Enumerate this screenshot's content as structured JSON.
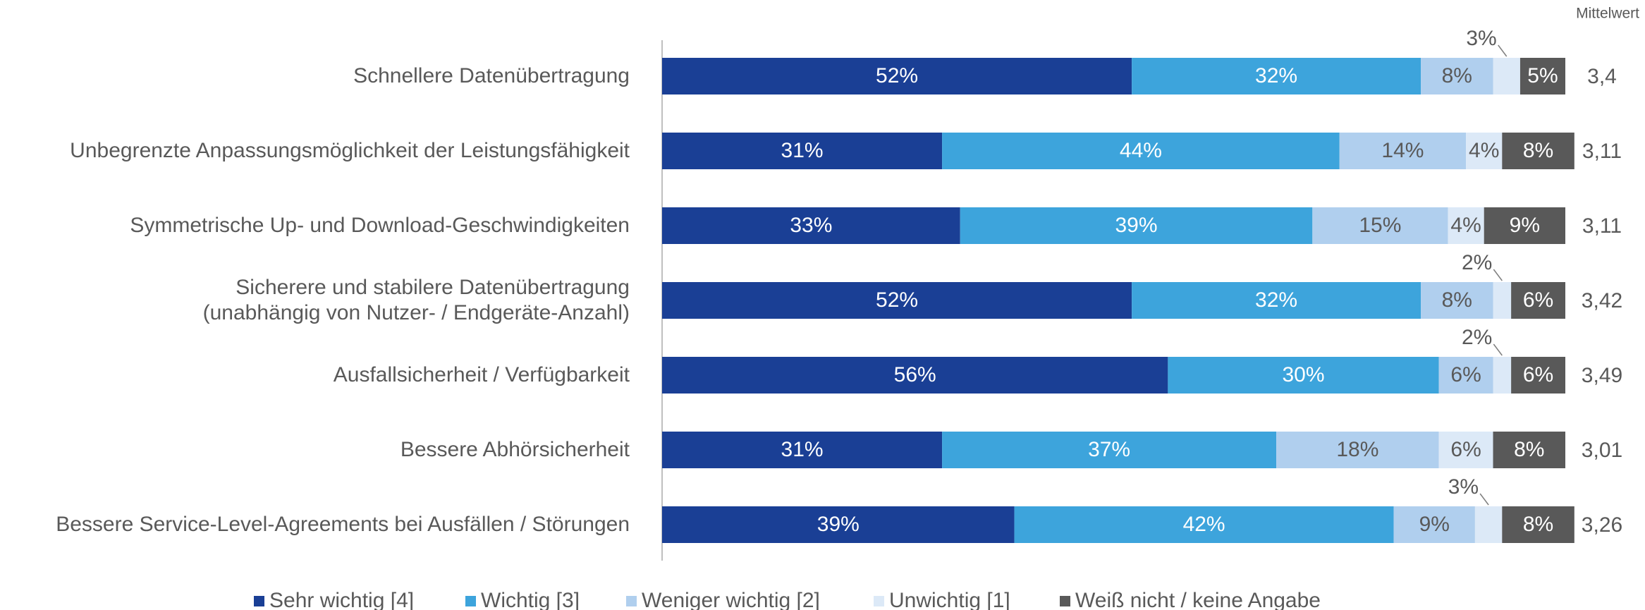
{
  "chart_data": {
    "type": "stacked-bar-horizontal",
    "corner_label": "Mittelwert",
    "categories": [
      "Schnellere Datenübertragung",
      "Unbegrenzte Anpassungsmöglichkeit der Leistungsfähigkeit",
      "Symmetrische Up- und Download-Geschwindigkeiten",
      "Sicherere und stabilere Datenübertragung\n(unabhängig von Nutzer- / Endgeräte-Anzahl)",
      "Ausfallsicherheit / Verfügbarkeit",
      "Bessere Abhörsicherheit",
      "Bessere Service-Level-Agreements bei Ausfällen / Störungen"
    ],
    "series": [
      {
        "name": "Sehr wichtig [4]",
        "color": "#1a3f95",
        "label_color": "#ffffff",
        "values": [
          52,
          31,
          33,
          52,
          56,
          31,
          39
        ],
        "value_labels": [
          "52%",
          "31%",
          "33%",
          "52%",
          "56%",
          "31%",
          "39%"
        ]
      },
      {
        "name": "Wichtig [3]",
        "color": "#3da4dc",
        "label_color": "#ffffff",
        "values": [
          32,
          44,
          39,
          32,
          30,
          37,
          42
        ],
        "value_labels": [
          "32%",
          "44%",
          "39%",
          "32%",
          "30%",
          "37%",
          "42%"
        ]
      },
      {
        "name": "Weniger wichtig [2]",
        "color": "#b0cfee",
        "label_color": "#595959",
        "values": [
          8,
          14,
          15,
          8,
          6,
          18,
          9
        ],
        "value_labels": [
          "8%",
          "14%",
          "15%",
          "8%",
          "6%",
          "18%",
          "9%"
        ]
      },
      {
        "name": "Unwichtig [1]",
        "color": "#dce9f7",
        "label_color": "#595959",
        "values": [
          3,
          4,
          4,
          2,
          2,
          6,
          3
        ],
        "value_labels": [
          "3%",
          "4%",
          "4%",
          "2%",
          "2%",
          "6%",
          "3%"
        ]
      },
      {
        "name": "Weiß nicht / keine Angabe",
        "color": "#595959",
        "label_color": "#ffffff",
        "values": [
          5,
          8,
          9,
          6,
          6,
          8,
          8
        ],
        "value_labels": [
          "5%",
          "8%",
          "9%",
          "6%",
          "6%",
          "8%",
          "8%"
        ]
      }
    ],
    "means": [
      3.4,
      3.11,
      3.11,
      3.42,
      3.49,
      3.01,
      3.26
    ],
    "mean_labels": [
      "3,4",
      "3,11",
      "3,11",
      "3,42",
      "3,49",
      "3,01",
      "3,26"
    ],
    "xlim": [
      0,
      100
    ]
  }
}
